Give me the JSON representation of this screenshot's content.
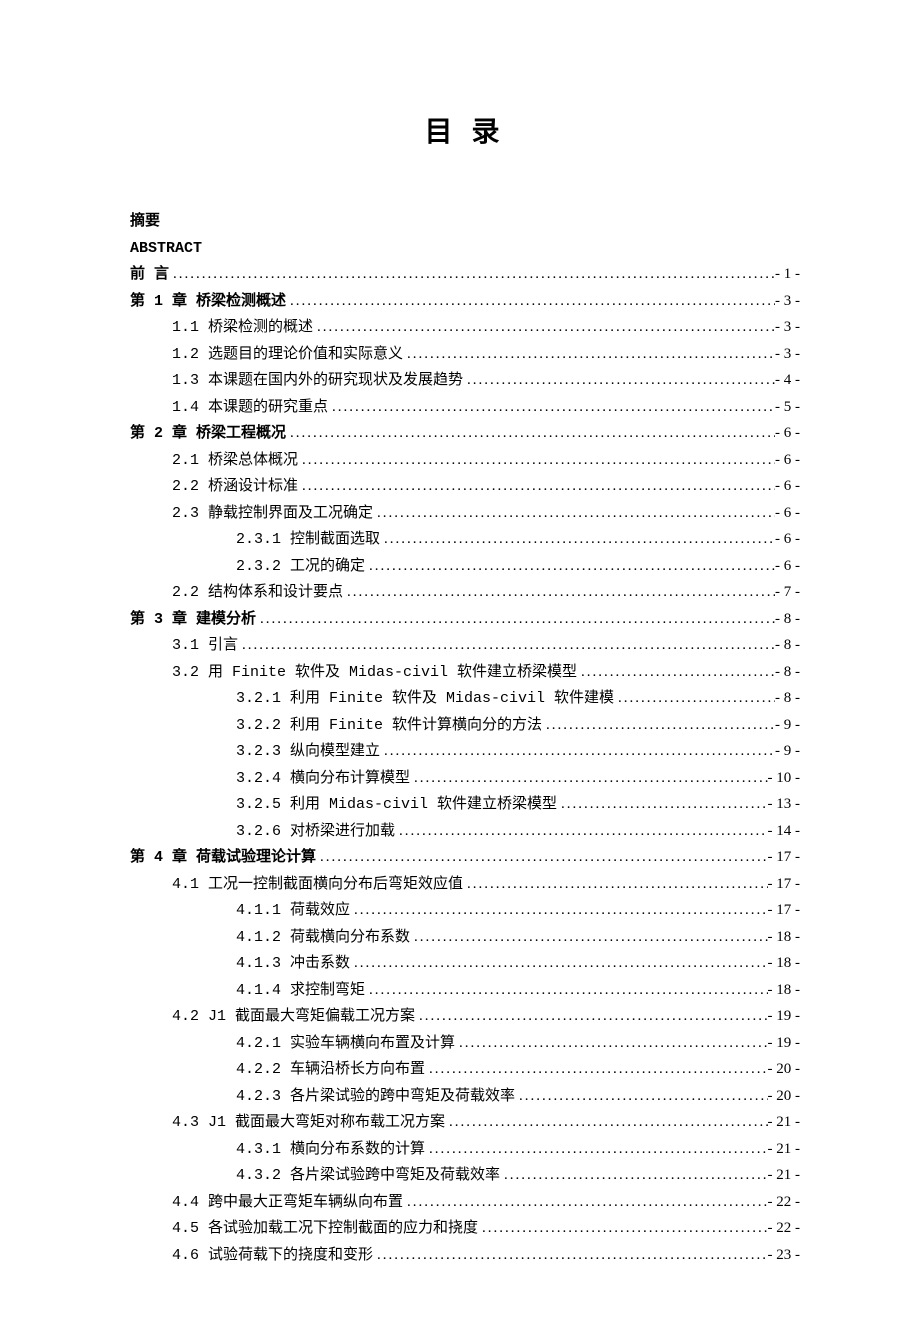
{
  "title": "目 录",
  "background_color": "#ffffff",
  "text_color": "#000000",
  "fonts": {
    "title_size": 28,
    "body_size": 15,
    "bold_family": "SimHei",
    "normal_family": "SimSun"
  },
  "entries": [
    {
      "text": "摘要",
      "page": "",
      "indent": 0,
      "bold": true,
      "leader": false
    },
    {
      "text": "ABSTRACT",
      "page": "",
      "indent": 0,
      "bold": true,
      "leader": false
    },
    {
      "text": "前 言",
      "page": "- 1 -",
      "indent": 0,
      "bold": true,
      "leader": true
    },
    {
      "text": "第 1 章 桥梁检测概述",
      "page": "- 3 -",
      "indent": 0,
      "bold": true,
      "leader": true
    },
    {
      "text": "1.1 桥梁检测的概述",
      "page": "- 3 -",
      "indent": 1,
      "bold": false,
      "leader": true
    },
    {
      "text": "1.2 选题目的理论价值和实际意义",
      "page": "- 3 -",
      "indent": 1,
      "bold": false,
      "leader": true
    },
    {
      "text": "1.3 本课题在国内外的研究现状及发展趋势",
      "page": "- 4 -",
      "indent": 1,
      "bold": false,
      "leader": true
    },
    {
      "text": "1.4 本课题的研究重点",
      "page": "- 5 -",
      "indent": 1,
      "bold": false,
      "leader": true
    },
    {
      "text": "第 2 章 桥梁工程概况",
      "page": "- 6 -",
      "indent": 0,
      "bold": true,
      "leader": true
    },
    {
      "text": "2.1 桥梁总体概况",
      "page": "- 6 -",
      "indent": 1,
      "bold": false,
      "leader": true
    },
    {
      "text": "2.2 桥涵设计标准",
      "page": "- 6 -",
      "indent": 1,
      "bold": false,
      "leader": true
    },
    {
      "text": "2.3 静载控制界面及工况确定",
      "page": "- 6 -",
      "indent": 1,
      "bold": false,
      "leader": true
    },
    {
      "text": "2.3.1 控制截面选取",
      "page": "- 6 -",
      "indent": 2,
      "bold": false,
      "leader": true
    },
    {
      "text": "2.3.2 工况的确定",
      "page": "- 6 -",
      "indent": 2,
      "bold": false,
      "leader": true
    },
    {
      "text": "2.2 结构体系和设计要点",
      "page": "- 7 -",
      "indent": 1,
      "bold": false,
      "leader": true
    },
    {
      "text": "第 3 章  建模分析",
      "page": "- 8 -",
      "indent": 0,
      "bold": true,
      "leader": true
    },
    {
      "text": "3.1 引言",
      "page": "- 8 -",
      "indent": 1,
      "bold": false,
      "leader": true
    },
    {
      "text": "3.2 用 Finite 软件及 Midas-civil 软件建立桥梁模型",
      "page": "- 8 -",
      "indent": 1,
      "bold": false,
      "leader": true
    },
    {
      "text": "3.2.1 利用 Finite 软件及 Midas-civil 软件建模",
      "page": "- 8 -",
      "indent": 2,
      "bold": false,
      "leader": true
    },
    {
      "text": "3.2.2 利用 Finite 软件计算横向分的方法",
      "page": "- 9 -",
      "indent": 2,
      "bold": false,
      "leader": true
    },
    {
      "text": "3.2.3 纵向模型建立",
      "page": "- 9 -",
      "indent": 2,
      "bold": false,
      "leader": true
    },
    {
      "text": "3.2.4 横向分布计算模型",
      "page": "- 10 -",
      "indent": 2,
      "bold": false,
      "leader": true
    },
    {
      "text": "3.2.5 利用 Midas-civil 软件建立桥梁模型",
      "page": "- 13 -",
      "indent": 2,
      "bold": false,
      "leader": true
    },
    {
      "text": "3.2.6 对桥梁进行加载",
      "page": "- 14 -",
      "indent": 2,
      "bold": false,
      "leader": true
    },
    {
      "text": "第 4 章 荷载试验理论计算",
      "page": "- 17 -",
      "indent": 0,
      "bold": true,
      "leader": true
    },
    {
      "text": "4.1 工况一控制截面横向分布后弯矩效应值",
      "page": "- 17 -",
      "indent": 1,
      "bold": false,
      "leader": true
    },
    {
      "text": "4.1.1 荷载效应",
      "page": "- 17 -",
      "indent": 2,
      "bold": false,
      "leader": true
    },
    {
      "text": "4.1.2 荷载横向分布系数",
      "page": "- 18 -",
      "indent": 2,
      "bold": false,
      "leader": true
    },
    {
      "text": "4.1.3 冲击系数",
      "page": "- 18 -",
      "indent": 2,
      "bold": false,
      "leader": true
    },
    {
      "text": "4.1.4 求控制弯矩",
      "page": "- 18 -",
      "indent": 2,
      "bold": false,
      "leader": true
    },
    {
      "text": "4.2 J1 截面最大弯矩偏载工况方案",
      "page": "- 19 -",
      "indent": 1,
      "bold": false,
      "leader": true
    },
    {
      "text": "4.2.1 实验车辆横向布置及计算",
      "page": "- 19 -",
      "indent": 2,
      "bold": false,
      "leader": true
    },
    {
      "text": "4.2.2 车辆沿桥长方向布置",
      "page": "- 20 -",
      "indent": 2,
      "bold": false,
      "leader": true
    },
    {
      "text": "4.2.3 各片梁试验的跨中弯矩及荷载效率",
      "page": "- 20 -",
      "indent": 2,
      "bold": false,
      "leader": true
    },
    {
      "text": "4.3 J1 截面最大弯矩对称布载工况方案",
      "page": "- 21 -",
      "indent": 1,
      "bold": false,
      "leader": true
    },
    {
      "text": "4.3.1 横向分布系数的计算",
      "page": "- 21 -",
      "indent": 2,
      "bold": false,
      "leader": true
    },
    {
      "text": "4.3.2 各片梁试验跨中弯矩及荷载效率",
      "page": "- 21 -",
      "indent": 2,
      "bold": false,
      "leader": true
    },
    {
      "text": "4.4 跨中最大正弯矩车辆纵向布置",
      "page": "- 22 -",
      "indent": 1,
      "bold": false,
      "leader": true
    },
    {
      "text": "4.5 各试验加载工况下控制截面的应力和挠度",
      "page": "- 22 -",
      "indent": 1,
      "bold": false,
      "leader": true
    },
    {
      "text": "4.6 试验荷载下的挠度和变形",
      "page": "- 23 -",
      "indent": 1,
      "bold": false,
      "leader": true
    }
  ]
}
